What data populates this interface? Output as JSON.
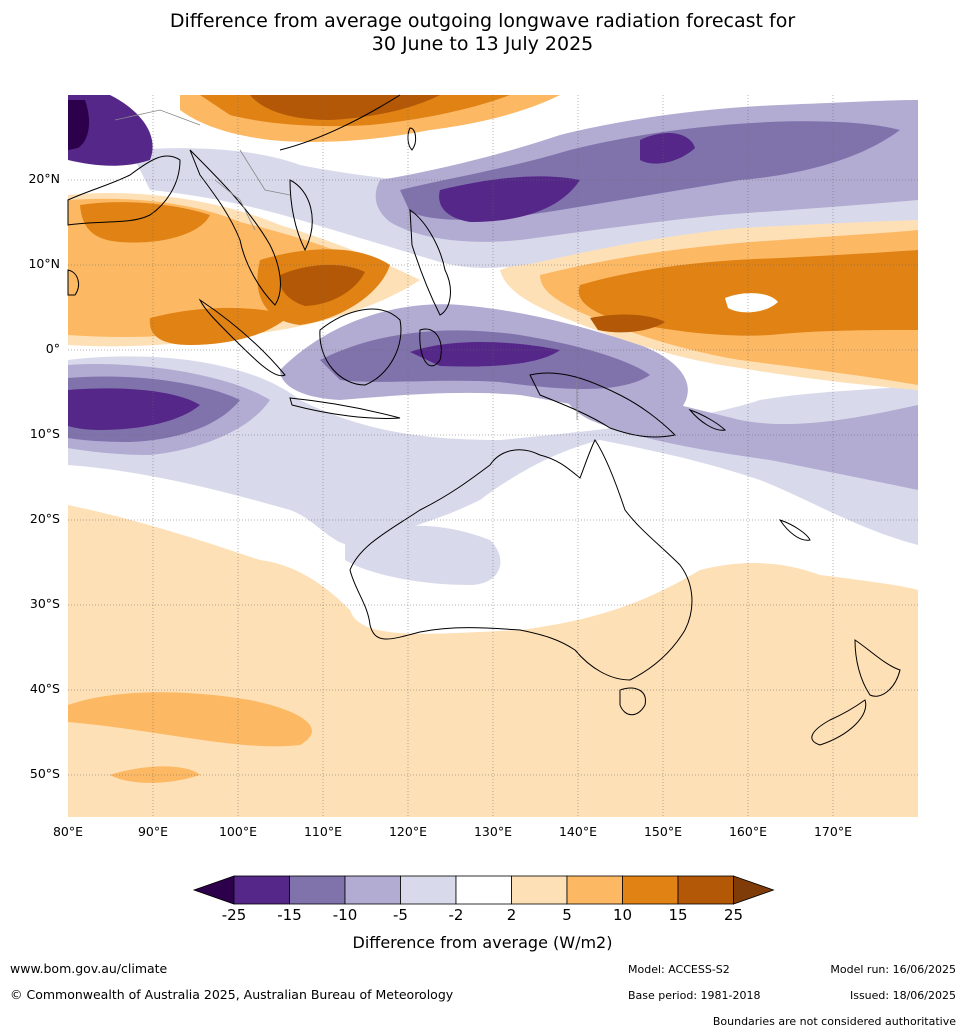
{
  "title_line1": "Difference from average outgoing longwave radiation forecast for",
  "title_line2": "30 June to 13 July 2025",
  "map": {
    "lon_range": [
      80,
      180
    ],
    "lat_range": [
      -55,
      30
    ],
    "lat_labels": [
      "20°N",
      "10°N",
      "0°",
      "10°S",
      "20°S",
      "30°S",
      "40°S",
      "50°S"
    ],
    "lon_labels": [
      "80°E",
      "90°E",
      "100°E",
      "110°E",
      "120°E",
      "130°E",
      "140°E",
      "150°E",
      "160°E",
      "170°E"
    ]
  },
  "colorbar": {
    "ticks": [
      "-25",
      "-15",
      "-10",
      "-5",
      "-2",
      "2",
      "5",
      "10",
      "15",
      "25"
    ],
    "colors": [
      "#2d004b",
      "#542788",
      "#8073ac",
      "#b2abd2",
      "#d8daeb",
      "#ffffff",
      "#fee0b6",
      "#fdb863",
      "#e08214",
      "#b35806",
      "#7f3b08"
    ],
    "label": "Difference from average (W/m2)"
  },
  "footer": {
    "website": "www.bom.gov.au/climate",
    "copyright": "© Commonwealth of Australia 2025, Australian Bureau of Meteorology",
    "model": "Model: ACCESS-S2",
    "base_period": "Base period: 1981-2018",
    "model_run": "Model run: 16/06/2025",
    "issued": "Issued: 18/06/2025",
    "disclaimer": "Boundaries are not considered authoritative"
  }
}
